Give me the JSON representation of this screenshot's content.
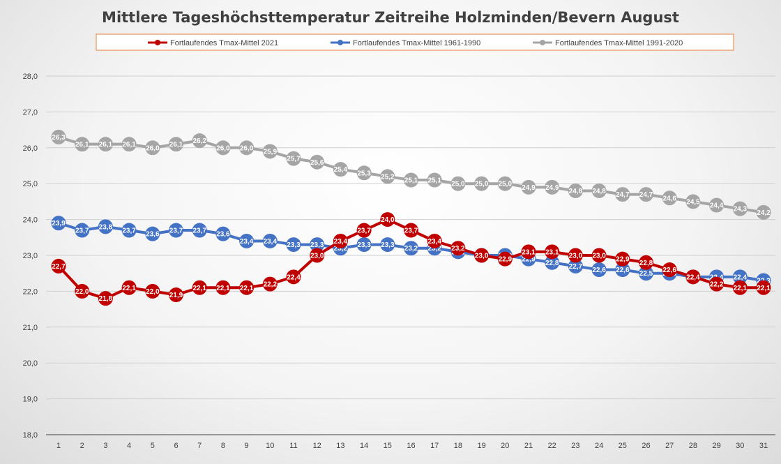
{
  "chart_data": {
    "type": "line",
    "title": "Mittlere Tageshöchsttemperatur Zeitreihe Holzminden/Bevern August",
    "xlabel": "",
    "ylabel": "",
    "categories": [
      "1",
      "2",
      "3",
      "4",
      "5",
      "6",
      "7",
      "8",
      "9",
      "10",
      "11",
      "12",
      "13",
      "14",
      "15",
      "16",
      "17",
      "18",
      "19",
      "20",
      "21",
      "22",
      "23",
      "24",
      "25",
      "26",
      "27",
      "28",
      "29",
      "30",
      "31"
    ],
    "ylim": [
      18.0,
      28.0
    ],
    "yticks": [
      "18,0",
      "19,0",
      "20,0",
      "21,0",
      "22,0",
      "23,0",
      "24,0",
      "25,0",
      "26,0",
      "27,0",
      "28,0"
    ],
    "legend_position": "top",
    "series": [
      {
        "name": "Fortlaufendes Tmax-Mittel 1991-2020",
        "color": "#a5a5a5",
        "values": [
          26.3,
          26.1,
          26.1,
          26.1,
          26.0,
          26.1,
          26.2,
          26.0,
          26.0,
          25.9,
          25.7,
          25.6,
          25.4,
          25.3,
          25.2,
          25.1,
          25.1,
          25.0,
          25.0,
          25.0,
          24.9,
          24.9,
          24.8,
          24.8,
          24.7,
          24.7,
          24.6,
          24.5,
          24.4,
          24.3,
          24.2
        ],
        "labels": [
          "26,3",
          "26,1",
          "26,1",
          "26,1",
          "26,0",
          "26,1",
          "26,2",
          "26,0",
          "26,0",
          "25,9",
          "25,7",
          "25,6",
          "25,4",
          "25,3",
          "25,2",
          "25,1",
          "25,1",
          "25,0",
          "25,0",
          "25,0",
          "24,9",
          "24,9",
          "24,8",
          "24,8",
          "24,7",
          "24,7",
          "24,6",
          "24,5",
          "24,4",
          "24,3",
          "24,2"
        ]
      },
      {
        "name": "Fortlaufendes Tmax-Mittel 1961-1990",
        "color": "#4472c4",
        "values": [
          23.9,
          23.7,
          23.8,
          23.7,
          23.6,
          23.7,
          23.7,
          23.6,
          23.4,
          23.4,
          23.3,
          23.3,
          23.2,
          23.3,
          23.3,
          23.2,
          23.2,
          23.1,
          23.0,
          23.0,
          22.9,
          22.8,
          22.7,
          22.6,
          22.6,
          22.5,
          22.5,
          22.4,
          22.4,
          22.4,
          22.3
        ],
        "labels": [
          "23,9",
          "23,7",
          "23,8",
          "23,7",
          "23,6",
          "23,7",
          "23,7",
          "23,6",
          "23,4",
          "23,4",
          "23,3",
          "23,3",
          "23,2",
          "23,3",
          "23,3",
          "23,2",
          "23,2",
          "23,1",
          "23,0",
          "23,0",
          "22,9",
          "22,8",
          "22,7",
          "22,6",
          "22,6",
          "22,5",
          "22,5",
          "22,4",
          "22,4",
          "22,4",
          "22,3"
        ]
      },
      {
        "name": "Fortlaufendes Tmax-Mittel 2021",
        "color": "#c00000",
        "values": [
          22.7,
          22.0,
          21.8,
          22.1,
          22.0,
          21.9,
          22.1,
          22.1,
          22.1,
          22.2,
          22.4,
          23.0,
          23.4,
          23.7,
          24.0,
          23.7,
          23.4,
          23.2,
          23.0,
          22.9,
          23.1,
          23.1,
          23.0,
          23.0,
          22.9,
          22.8,
          22.6,
          22.4,
          22.2,
          22.1,
          22.1
        ],
        "labels": [
          "22,7",
          "22,0",
          "21,8",
          "22,1",
          "22,0",
          "21,9",
          "22,1",
          "22,1",
          "22,1",
          "22,2",
          "22,4",
          "23,0",
          "23,4",
          "23,7",
          "24,0",
          "23,7",
          "23,4",
          "23,2",
          "23,0",
          "22,9",
          "23,1",
          "23,1",
          "23,0",
          "23,0",
          "22,9",
          "22,8",
          "22,6",
          "22,4",
          "22,2",
          "22,1",
          "22,1"
        ]
      }
    ],
    "legend": [
      {
        "name": "Fortlaufendes Tmax-Mittel 2021",
        "color": "#c00000"
      },
      {
        "name": "Fortlaufendes Tmax-Mittel 1961-1990",
        "color": "#4472c4"
      },
      {
        "name": "Fortlaufendes Tmax-Mittel 1991-2020",
        "color": "#a5a5a5"
      }
    ],
    "legend_border_color": "#ed7d31"
  }
}
